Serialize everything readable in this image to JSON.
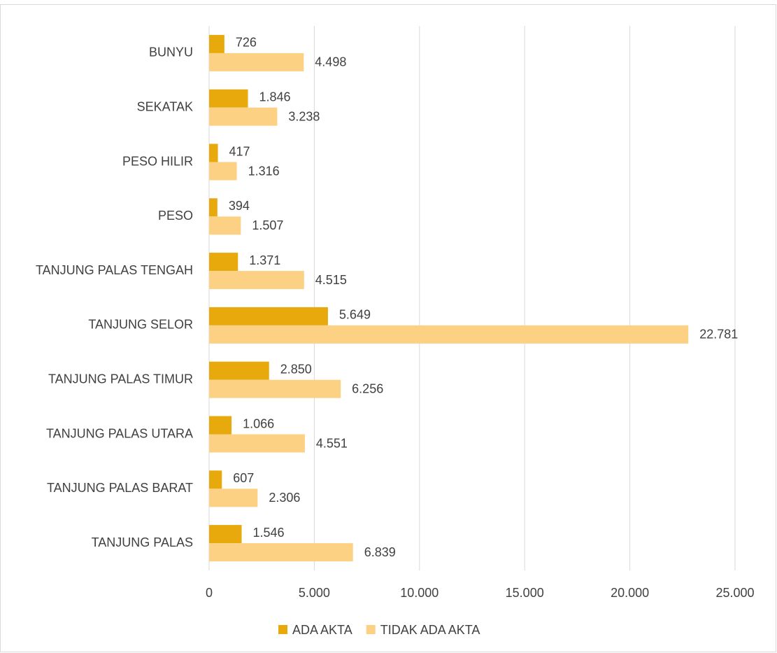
{
  "chart_data": {
    "type": "barh",
    "categories": [
      "BUNYU",
      "SEKATAK",
      "PESO HILIR",
      "PESO",
      "TANJUNG PALAS TENGAH",
      "TANJUNG SELOR",
      "TANJUNG PALAS TIMUR",
      "TANJUNG PALAS UTARA",
      "TANJUNG PALAS BARAT",
      "TANJUNG PALAS"
    ],
    "series": [
      {
        "name": "ADA AKTA",
        "color": "#e8a90c",
        "values": [
          726,
          1846,
          417,
          394,
          1371,
          5649,
          2850,
          1066,
          607,
          1546
        ],
        "value_labels": [
          "726",
          "1.846",
          "417",
          "394",
          "1.371",
          "5.649",
          "2.850",
          "1.066",
          "607",
          "1.546"
        ]
      },
      {
        "name": "TIDAK ADA AKTA",
        "color": "#fcd184",
        "values": [
          4498,
          3238,
          1316,
          1507,
          4515,
          22781,
          6256,
          4551,
          2306,
          6839
        ],
        "value_labels": [
          "4.498",
          "3.238",
          "1.316",
          "1.507",
          "4.515",
          "22.781",
          "6.256",
          "4.551",
          "2.306",
          "6.839"
        ]
      }
    ],
    "xlim": [
      0,
      25000
    ],
    "xticks": [
      0,
      {
        "value": 5000,
        "label": "5.000"
      },
      {
        "value": 10000,
        "label": "10.000"
      },
      {
        "value": 15000,
        "label": "15.000"
      },
      {
        "value": 20000,
        "label": "20.000"
      },
      {
        "value": 25000,
        "label": "25.000"
      }
    ],
    "grid": true,
    "legend": "bottom"
  }
}
